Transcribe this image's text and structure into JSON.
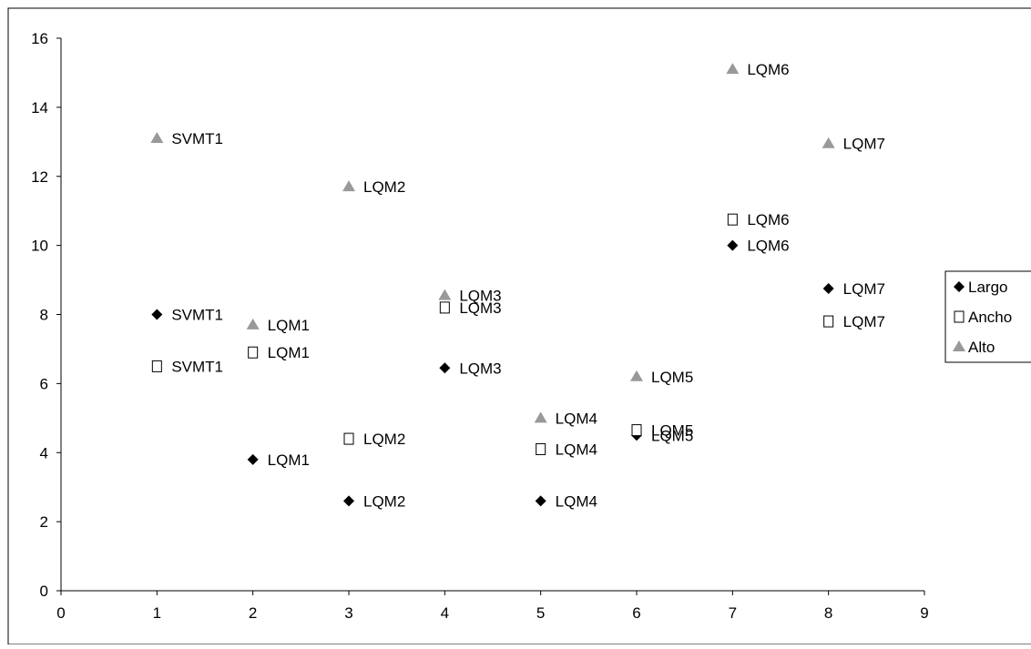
{
  "chart_data": {
    "type": "scatter",
    "xlim": [
      0,
      9
    ],
    "ylim": [
      0,
      16
    ],
    "x_ticks": [
      "0",
      "1",
      "2",
      "3",
      "4",
      "5",
      "6",
      "7",
      "8",
      "9"
    ],
    "y_ticks": [
      "0",
      "2",
      "4",
      "6",
      "8",
      "10",
      "12",
      "14",
      "16"
    ],
    "grid": false,
    "legend_position": "right",
    "series": [
      {
        "name": "Largo",
        "marker": "diamond",
        "color": "#000000",
        "points": [
          {
            "x": 1,
            "y": 8.0,
            "label": "SVMT1"
          },
          {
            "x": 2,
            "y": 3.8,
            "label": "LQM1"
          },
          {
            "x": 3,
            "y": 2.6,
            "label": "LQM2"
          },
          {
            "x": 4,
            "y": 6.45,
            "label": "LQM3"
          },
          {
            "x": 5,
            "y": 2.6,
            "label": "LQM4"
          },
          {
            "x": 6,
            "y": 4.5,
            "label": "LQM5"
          },
          {
            "x": 7,
            "y": 10.0,
            "label": "LQM6"
          },
          {
            "x": 8,
            "y": 8.75,
            "label": "LQM7"
          }
        ]
      },
      {
        "name": "Ancho",
        "marker": "square-open",
        "color": "#000000",
        "points": [
          {
            "x": 1,
            "y": 6.5,
            "label": "SVMT1"
          },
          {
            "x": 2,
            "y": 6.9,
            "label": "LQM1"
          },
          {
            "x": 3,
            "y": 4.4,
            "label": "LQM2"
          },
          {
            "x": 4,
            "y": 8.2,
            "label": "LQM3"
          },
          {
            "x": 5,
            "y": 4.1,
            "label": "LQM4"
          },
          {
            "x": 6,
            "y": 4.65,
            "label": "LQM5"
          },
          {
            "x": 7,
            "y": 10.75,
            "label": "LQM6"
          },
          {
            "x": 8,
            "y": 7.8,
            "label": "LQM7"
          }
        ]
      },
      {
        "name": "Alto",
        "marker": "triangle",
        "color": "#999999",
        "points": [
          {
            "x": 1,
            "y": 13.1,
            "label": "SVMT1"
          },
          {
            "x": 2,
            "y": 7.7,
            "label": "LQM1"
          },
          {
            "x": 3,
            "y": 11.7,
            "label": "LQM2"
          },
          {
            "x": 4,
            "y": 8.55,
            "label": "LQM3"
          },
          {
            "x": 5,
            "y": 5.0,
            "label": "LQM4"
          },
          {
            "x": 6,
            "y": 6.2,
            "label": "LQM5"
          },
          {
            "x": 7,
            "y": 15.1,
            "label": "LQM6"
          },
          {
            "x": 8,
            "y": 12.95,
            "label": "LQM7"
          }
        ]
      }
    ]
  }
}
